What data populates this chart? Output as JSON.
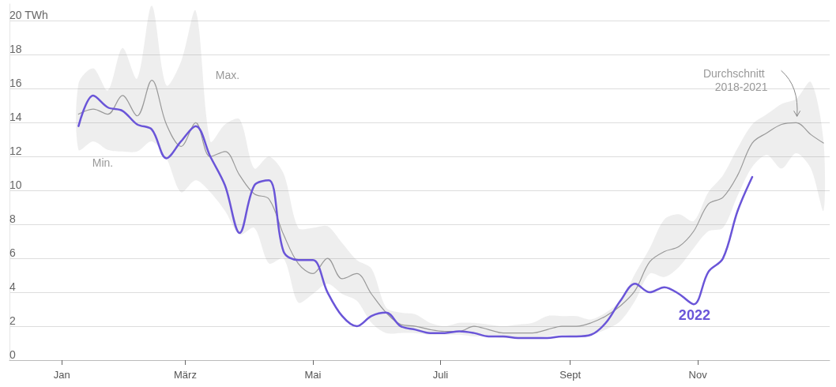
{
  "chart_data": {
    "type": "line",
    "grid": "y",
    "marker": "none",
    "line_style": "solid",
    "xlim": [
      "2021-12-07",
      "2023-01-03"
    ],
    "xticks": [
      {
        "value": "2022-01-01",
        "label": "Jan"
      },
      {
        "value": "2022-03-01",
        "label": "März"
      },
      {
        "value": "2022-05-01",
        "label": "Mai"
      },
      {
        "value": "2022-07-01",
        "label": "Juli"
      },
      {
        "value": "2022-09-01",
        "label": "Sept"
      },
      {
        "value": "2022-11-01",
        "label": "Nov"
      }
    ],
    "ylim": [
      0,
      21
    ],
    "yticks": [
      0,
      2,
      4,
      6,
      8,
      10,
      12,
      14,
      16,
      18,
      {
        "value": 20,
        "label": "20 TWh"
      }
    ],
    "x": [
      "2022-01-09",
      "2022-01-16",
      "2022-01-23",
      "2022-01-30",
      "2022-02-06",
      "2022-02-13",
      "2022-02-20",
      "2022-02-27",
      "2022-03-06",
      "2022-03-13",
      "2022-03-20",
      "2022-03-27",
      "2022-04-03",
      "2022-04-10",
      "2022-04-17",
      "2022-04-24",
      "2022-05-01",
      "2022-05-08",
      "2022-05-15",
      "2022-05-22",
      "2022-05-29",
      "2022-06-05",
      "2022-06-12",
      "2022-06-19",
      "2022-06-26",
      "2022-07-03",
      "2022-07-10",
      "2022-07-17",
      "2022-07-24",
      "2022-07-31",
      "2022-08-07",
      "2022-08-14",
      "2022-08-21",
      "2022-08-28",
      "2022-09-04",
      "2022-09-11",
      "2022-09-18",
      "2022-09-25",
      "2022-10-02",
      "2022-10-09",
      "2022-10-16",
      "2022-10-23",
      "2022-10-30",
      "2022-11-06",
      "2022-11-13",
      "2022-11-20",
      "2022-11-27",
      "2022-12-04",
      "2022-12-11",
      "2022-12-18",
      "2022-12-25",
      "2022-12-31"
    ],
    "series": [
      {
        "name": "Durchschnitt 2018-2021",
        "color": "#999999",
        "values": [
          14.5,
          14.8,
          14.5,
          15.6,
          14.4,
          16.5,
          13.9,
          12.6,
          14.0,
          12.0,
          12.3,
          10.9,
          9.8,
          9.5,
          7.4,
          5.7,
          5.1,
          6.0,
          4.8,
          5.1,
          3.9,
          2.8,
          2.1,
          2.0,
          1.8,
          1.7,
          1.7,
          2.0,
          1.8,
          1.6,
          1.6,
          1.6,
          1.8,
          2.0,
          2.0,
          2.2,
          2.6,
          3.2,
          4.1,
          5.8,
          6.4,
          6.7,
          7.6,
          9.2,
          9.6,
          10.9,
          12.8,
          13.4,
          13.9,
          14.0,
          13.3,
          12.8
        ],
        "lower": [
          12.4,
          12.9,
          12.4,
          12.3,
          12.3,
          12.9,
          11.9,
          9.9,
          10.6,
          9.9,
          8.8,
          7.4,
          7.8,
          5.7,
          6.0,
          3.4,
          3.9,
          4.5,
          3.9,
          3.5,
          2.2,
          1.6,
          1.6,
          1.6,
          1.5,
          1.5,
          1.5,
          1.4,
          1.4,
          1.3,
          1.3,
          1.3,
          1.4,
          1.5,
          1.4,
          1.5,
          1.8,
          2.3,
          3.5,
          5.1,
          4.9,
          5.5,
          6.6,
          7.6,
          7.8,
          9.7,
          11.4,
          12.1,
          11.3,
          12.2,
          11.3,
          8.8
        ],
        "upper": [
          16.3,
          17.2,
          15.9,
          18.4,
          16.6,
          20.9,
          16.2,
          17.6,
          20.6,
          12.9,
          13.9,
          14.2,
          11.3,
          12.0,
          11.0,
          7.8,
          7.8,
          7.9,
          6.9,
          5.9,
          5.4,
          3.1,
          2.8,
          2.7,
          2.2,
          2.0,
          2.2,
          2.2,
          2.1,
          2.0,
          2.1,
          2.2,
          2.6,
          2.6,
          2.6,
          2.4,
          2.8,
          3.5,
          5.1,
          6.6,
          8.3,
          8.6,
          8.2,
          9.9,
          10.9,
          12.5,
          13.9,
          14.5,
          15.1,
          15.4,
          16.4,
          13.0
        ]
      },
      {
        "name": "2022",
        "color": "#6a55d8",
        "values": [
          13.8,
          15.6,
          14.9,
          14.7,
          13.9,
          13.6,
          11.9,
          12.9,
          13.8,
          12.0,
          10.3,
          7.5,
          10.3,
          10.6,
          6.4,
          5.9,
          5.9,
          4.0,
          2.6,
          2.0,
          2.6,
          2.8,
          2.0,
          1.8,
          1.6,
          1.6,
          1.7,
          1.6,
          1.4,
          1.4,
          1.3,
          1.3,
          1.3,
          1.4,
          1.4,
          1.5,
          2.2,
          3.5,
          4.5,
          4.0,
          4.3,
          3.9,
          3.3,
          5.2,
          6.0,
          8.8,
          10.8,
          null,
          null,
          null,
          null,
          null
        ]
      }
    ],
    "annotations": [
      "Max.",
      "Min."
    ]
  }
}
